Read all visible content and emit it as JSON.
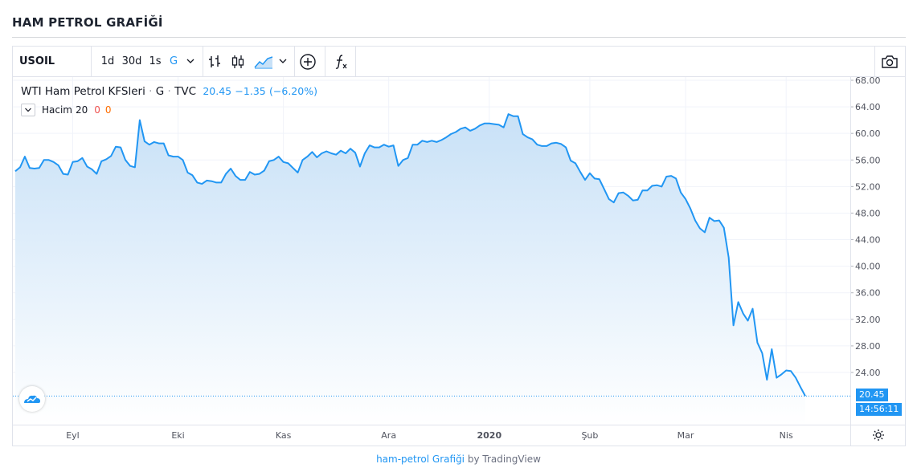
{
  "page_title": "HAM PETROL GRAFİĞİ",
  "toolbar": {
    "symbol": "USOIL",
    "intervals": [
      "1d",
      "30d",
      "1s",
      "G"
    ],
    "active_interval": "G",
    "icons": [
      "chevron-down-icon",
      "bar-chart-icon",
      "candlestick-icon",
      "area-chart-icon",
      "chevron-down-icon",
      "add-indicator-icon",
      "function-icon",
      "camera-icon"
    ]
  },
  "legend": {
    "name": "WTI Ham Petrol KFSleri",
    "sep1": "·",
    "interval": "G",
    "sep2": "·",
    "source": "TVC",
    "last": "20.45",
    "change": "−1.35",
    "change_pct": "(−6.20%)"
  },
  "volume": {
    "label": "Hacim",
    "period": "20",
    "val1": "0",
    "val2": "0"
  },
  "last_price_tag": "20.45",
  "countdown_tag": "14:56:11",
  "footer": {
    "link_text": "ham-petrol Grafiği",
    "by_text": "by TradingView"
  },
  "colors": {
    "line": "#2196f3",
    "area_top": "#c8e1f7",
    "area_bottom": "#ffffff",
    "accent": "#2196f3"
  },
  "chart_data": {
    "type": "area",
    "title": "WTI Ham Petrol KFSleri",
    "ylim": [
      20,
      68
    ],
    "y_ticks": [
      "24.00",
      "28.00",
      "32.00",
      "36.00",
      "40.00",
      "44.00",
      "48.00",
      "52.00",
      "56.00",
      "60.00",
      "64.00",
      "68.00"
    ],
    "x_ticks": [
      "Eyl",
      "Eki",
      "Kas",
      "Ara",
      "2020",
      "Şub",
      "Mar",
      "Nis"
    ],
    "x_tick_index": [
      12,
      34,
      56,
      78,
      99,
      120,
      140,
      161
    ],
    "grid": true,
    "values": [
      54.3,
      54.9,
      56.5,
      54.8,
      54.7,
      54.8,
      56.0,
      56.0,
      55.7,
      55.2,
      53.9,
      53.8,
      55.7,
      55.8,
      56.3,
      55.0,
      54.6,
      53.9,
      55.8,
      56.1,
      56.6,
      58.0,
      57.9,
      56.0,
      55.1,
      54.9,
      62.0,
      58.8,
      58.3,
      58.7,
      58.5,
      58.5,
      56.7,
      56.5,
      56.5,
      56.0,
      54.1,
      53.7,
      52.6,
      52.4,
      52.9,
      52.8,
      52.6,
      52.6,
      53.9,
      54.7,
      53.6,
      53.0,
      53.0,
      54.2,
      53.8,
      53.9,
      54.4,
      55.8,
      56.0,
      56.5,
      55.7,
      55.5,
      54.8,
      54.1,
      56.0,
      56.5,
      57.2,
      56.4,
      57.0,
      57.3,
      57.0,
      56.8,
      57.4,
      57.0,
      57.7,
      57.1,
      55.0,
      57.0,
      58.2,
      57.9,
      57.9,
      58.3,
      58.0,
      58.2,
      55.1,
      56.0,
      56.3,
      58.3,
      58.3,
      58.9,
      58.7,
      58.9,
      58.7,
      59.0,
      59.4,
      59.9,
      60.2,
      60.7,
      60.9,
      60.4,
      60.7,
      61.2,
      61.5,
      61.5,
      61.4,
      61.3,
      60.9,
      62.9,
      62.6,
      62.6,
      59.9,
      59.4,
      59.1,
      58.3,
      58.1,
      58.1,
      58.5,
      58.6,
      58.4,
      57.9,
      55.9,
      55.5,
      54.2,
      53.0,
      54.0,
      53.2,
      53.1,
      51.6,
      50.1,
      49.6,
      51.0,
      51.1,
      50.6,
      49.9,
      50.0,
      51.4,
      51.4,
      52.1,
      52.2,
      52.0,
      53.5,
      53.6,
      53.2,
      51.1,
      50.1,
      48.7,
      46.9,
      45.7,
      45.1,
      47.3,
      46.8,
      46.9,
      45.8,
      41.3,
      31.1,
      34.6,
      32.9,
      31.8,
      33.6,
      28.5,
      26.9,
      22.9,
      27.5,
      23.2,
      23.7,
      24.3,
      24.2,
      23.2,
      21.8,
      20.45
    ]
  }
}
